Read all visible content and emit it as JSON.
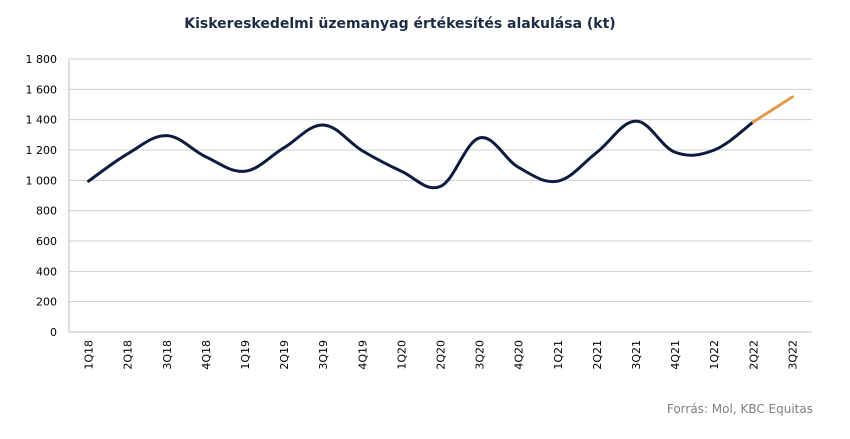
{
  "chart_data": {
    "type": "line",
    "title": "Kiskereskedelmi üzemanyag értékesítés alakulása (kt)",
    "xlabel": "",
    "ylabel": "",
    "categories": [
      "1Q18",
      "2Q18",
      "3Q18",
      "4Q18",
      "1Q19",
      "2Q19",
      "3Q19",
      "4Q19",
      "1Q20",
      "2Q20",
      "3Q20",
      "4Q20",
      "1Q21",
      "2Q21",
      "3Q21",
      "4Q21",
      "1Q22",
      "2Q22",
      "3Q22"
    ],
    "ylim": [
      0,
      1800
    ],
    "ytick_labels": [
      "0",
      "200",
      "400",
      "600",
      "800",
      "1 000",
      "1 200",
      "1 400",
      "1 600",
      "1 800"
    ],
    "ytick_values": [
      0,
      200,
      400,
      600,
      800,
      1000,
      1200,
      1400,
      1600,
      1800
    ],
    "grid": true,
    "legend": "none",
    "series": [
      {
        "color": "#0d1b3e",
        "values": [
          995,
          1175,
          1295,
          1155,
          1060,
          1215,
          1365,
          1195,
          1060,
          960,
          1280,
          1085,
          995,
          1185,
          1390,
          1185,
          1200,
          1385,
          null
        ]
      },
      {
        "color": "#e39b4f",
        "values": [
          null,
          null,
          null,
          null,
          null,
          null,
          null,
          null,
          null,
          null,
          null,
          null,
          null,
          null,
          null,
          null,
          null,
          1385,
          1550
        ]
      }
    ]
  },
  "source": "Forrás: Mol, KBC Equitas"
}
